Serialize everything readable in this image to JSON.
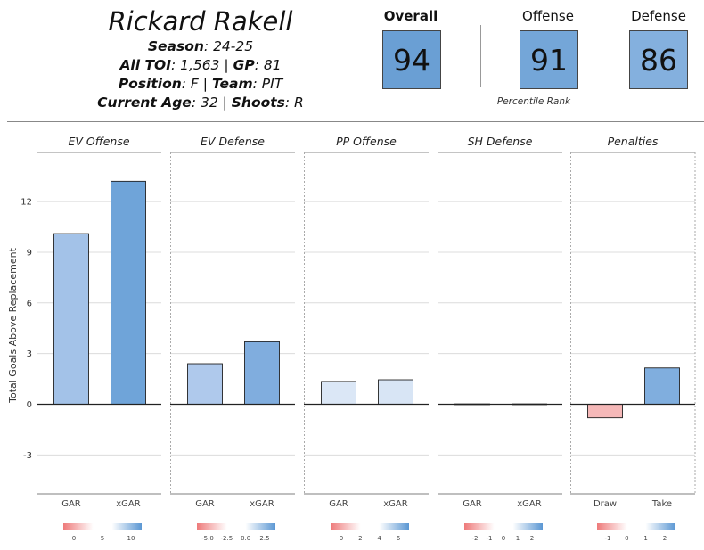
{
  "header": {
    "player_name": "Rickard Rakell",
    "season_label": "Season",
    "season_value": ": 24-25",
    "toi_label": "All TOI",
    "toi_value": ": 1,563 | ",
    "gp_label": "GP",
    "gp_value": ": 81",
    "position_label": "Position",
    "position_value": ": F | ",
    "team_label": "Team",
    "team_value": ": PIT",
    "age_label": "Current Age",
    "age_value": ": 32 | ",
    "shoots_label": "Shoots",
    "shoots_value": ": R"
  },
  "ranks": [
    {
      "label": "Overall",
      "value": "94",
      "color": "#6a9fd4"
    },
    {
      "label": "Offense",
      "value": "91",
      "color": "#74a6d8"
    },
    {
      "label": "Defense",
      "value": "86",
      "color": "#84b0de"
    }
  ],
  "percentile_note": "Percentile Rank",
  "chart_data": {
    "type": "bar",
    "ylabel": "Total Goals Above Replacement",
    "ylim": [
      -5.3,
      14.9
    ],
    "yticks": [
      -3,
      0,
      3,
      6,
      9,
      12
    ],
    "grid": true,
    "panels": [
      {
        "title": "EV Offense",
        "categories": [
          "GAR",
          "xGAR"
        ],
        "values": [
          10.1,
          13.2
        ],
        "colors": [
          "#a3c2e8",
          "#6fa4d9"
        ],
        "legend": {
          "ticks": [
            "0",
            "5",
            "10"
          ]
        }
      },
      {
        "title": "EV Defense",
        "categories": [
          "GAR",
          "xGAR"
        ],
        "values": [
          2.4,
          3.7
        ],
        "colors": [
          "#afc9ec",
          "#80adde"
        ],
        "legend": {
          "ticks": [
            "-5.0",
            "-2.5",
            "0.0",
            "2.5"
          ]
        }
      },
      {
        "title": "PP Offense",
        "categories": [
          "GAR",
          "xGAR"
        ],
        "values": [
          1.35,
          1.45
        ],
        "colors": [
          "#dbe7f6",
          "#d8e5f5"
        ],
        "legend": {
          "ticks": [
            "0",
            "2",
            "4",
            "6"
          ]
        }
      },
      {
        "title": "SH Defense",
        "categories": [
          "GAR",
          "xGAR"
        ],
        "values": [
          0.02,
          0.02
        ],
        "colors": [
          "#f4f4f4",
          "#f4f4f4"
        ],
        "legend": {
          "ticks": [
            "-2",
            "-1",
            "0",
            "1",
            "2"
          ]
        }
      },
      {
        "title": "Penalties",
        "categories": [
          "Draw",
          "Take"
        ],
        "values": [
          -0.8,
          2.15
        ],
        "colors": [
          "#f5b8b8",
          "#80aede"
        ],
        "legend": {
          "ticks": [
            "-1",
            "0",
            "1",
            "2"
          ]
        }
      }
    ]
  }
}
